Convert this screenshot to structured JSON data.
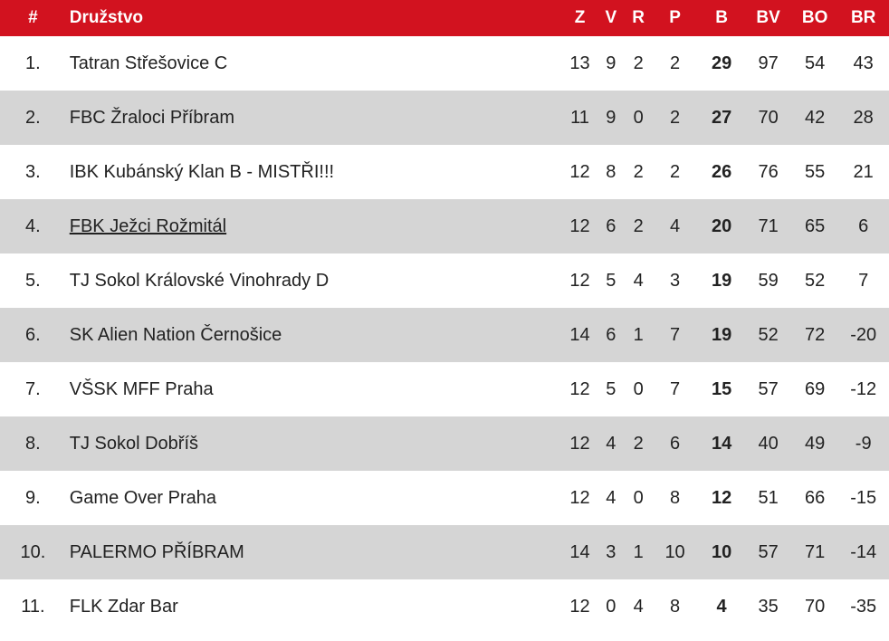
{
  "colors": {
    "header_bg": "#d2121f",
    "header_text": "#ffffff",
    "alt_row_bg": "#d5d5d5"
  },
  "headers": {
    "rank": "#",
    "team": "Družstvo",
    "z": "Z",
    "v": "V",
    "r": "R",
    "p": "P",
    "b": "B",
    "bv": "BV",
    "bo": "BO",
    "br": "BR"
  },
  "rows": [
    {
      "rank": "1.",
      "team": "Tatran Střešovice C",
      "z": "13",
      "v": "9",
      "r": "2",
      "p": "2",
      "b": "29",
      "bv": "97",
      "bo": "54",
      "br": "43"
    },
    {
      "rank": "2.",
      "team": "FBC Žraloci Příbram",
      "z": "11",
      "v": "9",
      "r": "0",
      "p": "2",
      "b": "27",
      "bv": "70",
      "bo": "42",
      "br": "28"
    },
    {
      "rank": "3.",
      "team": "IBK Kubánský Klan B - MISTŘI!!!",
      "z": "12",
      "v": "8",
      "r": "2",
      "p": "2",
      "b": "26",
      "bv": "76",
      "bo": "55",
      "br": "21"
    },
    {
      "rank": "4.",
      "team": "FBK Ježci Rožmitál",
      "z": "12",
      "v": "6",
      "r": "2",
      "p": "4",
      "b": "20",
      "bv": "71",
      "bo": "65",
      "br": "6"
    },
    {
      "rank": "5.",
      "team": "TJ Sokol Královské Vinohrady D",
      "z": "12",
      "v": "5",
      "r": "4",
      "p": "3",
      "b": "19",
      "bv": "59",
      "bo": "52",
      "br": "7"
    },
    {
      "rank": "6.",
      "team": "SK Alien Nation Černošice",
      "z": "14",
      "v": "6",
      "r": "1",
      "p": "7",
      "b": "19",
      "bv": "52",
      "bo": "72",
      "br": "-20"
    },
    {
      "rank": "7.",
      "team": "VŠSK MFF Praha",
      "z": "12",
      "v": "5",
      "r": "0",
      "p": "7",
      "b": "15",
      "bv": "57",
      "bo": "69",
      "br": "-12"
    },
    {
      "rank": "8.",
      "team": "TJ Sokol Dobříš",
      "z": "12",
      "v": "4",
      "r": "2",
      "p": "6",
      "b": "14",
      "bv": "40",
      "bo": "49",
      "br": "-9"
    },
    {
      "rank": "9.",
      "team": "Game Over Praha",
      "z": "12",
      "v": "4",
      "r": "0",
      "p": "8",
      "b": "12",
      "bv": "51",
      "bo": "66",
      "br": "-15"
    },
    {
      "rank": "10.",
      "team": "PALERMO PŘÍBRAM",
      "z": "14",
      "v": "3",
      "r": "1",
      "p": "10",
      "b": "10",
      "bv": "57",
      "bo": "71",
      "br": "-14"
    },
    {
      "rank": "11.",
      "team": "FLK Zdar Bar",
      "z": "12",
      "v": "0",
      "r": "4",
      "p": "8",
      "b": "4",
      "bv": "35",
      "bo": "70",
      "br": "-35"
    }
  ]
}
